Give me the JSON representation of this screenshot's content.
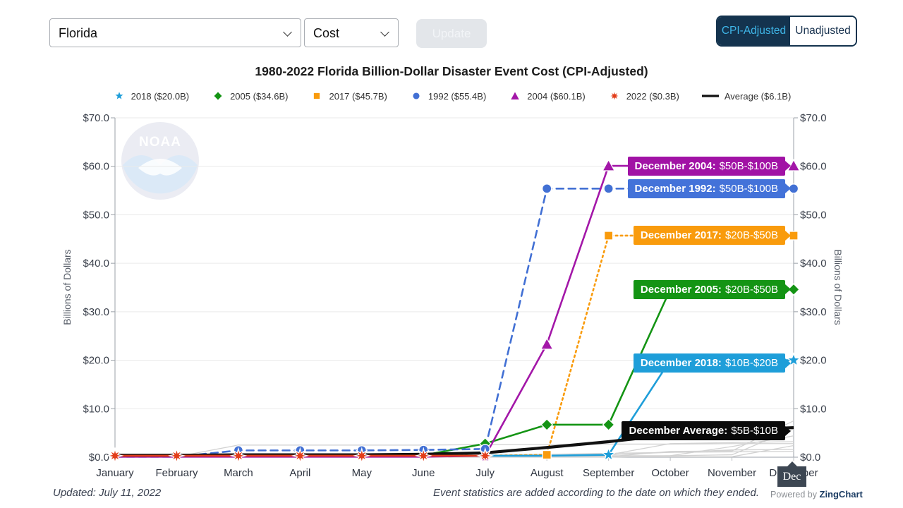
{
  "header": {
    "state_select": {
      "value": "Florida"
    },
    "metric_select": {
      "value": "Cost"
    },
    "update_label": "Update",
    "toggle": {
      "options": [
        "CPI-Adjusted",
        "Unadjusted"
      ],
      "active": "CPI-Adjusted"
    }
  },
  "title": "1980-2022 Florida Billion-Dollar Disaster Event Cost (CPI-Adjusted)",
  "chart_data": {
    "type": "line",
    "months": [
      "January",
      "February",
      "March",
      "April",
      "May",
      "June",
      "July",
      "August",
      "September",
      "October",
      "November",
      "December"
    ],
    "ylabel": "Billions of Dollars",
    "ylim": [
      0,
      70
    ],
    "ytick_values": [
      0,
      10,
      20,
      30,
      40,
      50,
      60,
      70
    ],
    "ytick_prefix": "$",
    "grid": "horizontal",
    "legend_position": "top",
    "watermark": "NOAA",
    "tooltip_label": "Dec",
    "series": [
      {
        "name": "2018",
        "legend": "2018 ($20.0B)",
        "total": 20.0,
        "color": "#1e9ed9",
        "marker": "star",
        "line": "solid",
        "values": [
          0.2,
          0.2,
          0.2,
          0.2,
          0.2,
          0.2,
          0.3,
          0.3,
          0.5,
          20,
          20,
          20
        ],
        "marker_indices": [
          8,
          11
        ]
      },
      {
        "name": "2005",
        "legend": "2005 ($34.6B)",
        "total": 34.6,
        "color": "#149414",
        "marker": "diamond",
        "line": "solid",
        "values": [
          0.2,
          0.2,
          0.2,
          0.2,
          0.2,
          0.4,
          2.8,
          6.7,
          6.7,
          34.6,
          34.6,
          34.6
        ],
        "marker_indices": [
          6,
          7,
          8,
          11
        ]
      },
      {
        "name": "2017",
        "legend": "2017 ($45.7B)",
        "total": 45.7,
        "color": "#f99b0c",
        "marker": "square",
        "line": "dotted",
        "values": [
          0.3,
          0.3,
          0.3,
          0.3,
          0.3,
          0.3,
          0.3,
          0.5,
          45.7,
          45.7,
          45.7,
          45.7
        ],
        "marker_indices": [
          7,
          8,
          11
        ]
      },
      {
        "name": "1992",
        "legend": "1992 ($55.4B)",
        "total": 55.4,
        "color": "#4270d4",
        "marker": "circle",
        "line": "dashed",
        "values": [
          0.1,
          0.1,
          1.4,
          1.4,
          1.4,
          1.5,
          1.7,
          55.4,
          55.4,
          55.4,
          55.4,
          55.4
        ],
        "marker_indices": [
          2,
          3,
          4,
          5,
          6,
          7,
          8,
          11
        ]
      },
      {
        "name": "2004",
        "legend": "2004 ($60.1B)",
        "total": 60.1,
        "color": "#a317a8",
        "marker": "triangle",
        "line": "solid",
        "values": [
          0.1,
          0.1,
          0.1,
          0.1,
          0.1,
          0.1,
          0.3,
          23.3,
          60.1,
          60.1,
          60.1,
          60.1
        ],
        "marker_indices": [
          6,
          7,
          8,
          11
        ]
      },
      {
        "name": "2022",
        "legend": "2022 ($0.3B)",
        "total": 0.3,
        "color": "#e23d1a",
        "marker": "burst",
        "line": "solid",
        "values": [
          0.3,
          0.3,
          0.3,
          0.3,
          0.3,
          0.3,
          0.3
        ],
        "marker_indices": [
          0,
          1,
          2,
          3,
          4,
          5,
          6
        ]
      },
      {
        "name": "Average",
        "legend": "Average ($6.1B)",
        "total": 6.1,
        "color": "#111111",
        "marker": "none",
        "line": "solid-thick",
        "values": [
          0.4,
          0.4,
          0.5,
          0.5,
          0.5,
          0.6,
          0.9,
          2.0,
          3.2,
          4.6,
          5.6,
          6.1
        ],
        "marker_indices": []
      }
    ],
    "background_series": [
      [
        0,
        0.1,
        2.5,
        2.5,
        2.5,
        2.5,
        2.6,
        2.6,
        2.7,
        2.7,
        2.8,
        2.8
      ],
      [
        0.1,
        0.1,
        0.1,
        0.1,
        0.1,
        0.1,
        0.1,
        0.3,
        0.5,
        1.0,
        1.5,
        1.6
      ],
      [
        0.2,
        0.2,
        0.2,
        0.2,
        0.2,
        0.2,
        0.2,
        0.2,
        0.5,
        2.8,
        3.0,
        3.2
      ],
      [
        0,
        0,
        0,
        0,
        0,
        0,
        0,
        0,
        0,
        0.3,
        2.2,
        4.4
      ],
      [
        0.1,
        0.1,
        0.1,
        0.1,
        0.1,
        0.1,
        0.1,
        0.1,
        0.1,
        1.2,
        1.3,
        7.5
      ],
      [
        0.3,
        0.3,
        0.3,
        0.3,
        0.3,
        0.3,
        0.3,
        0.3,
        0.3,
        0.3,
        0.5,
        5.8
      ],
      [
        0.2,
        0.2,
        0.2,
        0.2,
        0.2,
        0.2,
        0.4,
        0.6,
        0.8,
        1.0,
        1.1,
        1.2
      ],
      [
        0.1,
        0.1,
        0.1,
        0.1,
        0.1,
        0.1,
        0.1,
        0.1,
        0.1,
        0.1,
        0.1,
        2.4
      ]
    ],
    "annotations": [
      {
        "series": "2004",
        "label": "December 2004:",
        "range": "$50B-$100B",
        "color": "#a112a5",
        "value": 60.1,
        "box_center": 60.1
      },
      {
        "series": "1992",
        "label": "December 1992:",
        "range": "$50B-$100B",
        "color": "#4372d9",
        "value": 55.4,
        "box_center": 55.4
      },
      {
        "series": "2017",
        "label": "December 2017:",
        "range": "$20B-$50B",
        "color": "#f99b0c",
        "value": 45.7,
        "box_center": 45.7
      },
      {
        "series": "2005",
        "label": "December 2005:",
        "range": "$20B-$50B",
        "color": "#149414",
        "value": 34.6,
        "box_center": 34.6
      },
      {
        "series": "2018",
        "label": "December 2018:",
        "range": "$10B-$20B",
        "color": "#1e9ed9",
        "value": 20.0,
        "box_center": 19.4
      },
      {
        "series": "Average",
        "label": "December Average:",
        "range": "$5B-$10B",
        "color": "#0a0a0a",
        "value": 6.1,
        "box_center": 5.4
      }
    ]
  },
  "footer": {
    "updated": "Updated: July 11, 2022",
    "note": "Event statistics are added according to the date on which they ended.",
    "powered_prefix": "Powered by",
    "powered_brand": "ZingChart"
  }
}
